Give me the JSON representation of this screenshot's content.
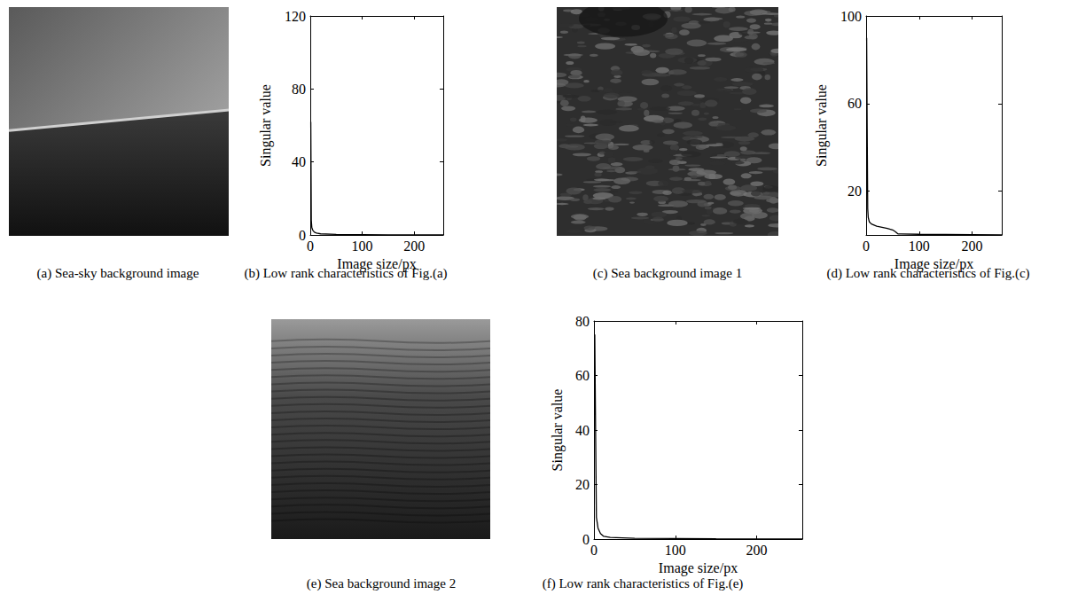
{
  "chart_data": [
    {
      "type": "image",
      "caption": "(a) Sea-sky background image"
    },
    {
      "type": "line",
      "caption": "(b) Low rank characteristics of Fig.(a)",
      "x_label": "Image size/px",
      "y_label": "Singular value",
      "xlim": [
        0,
        256
      ],
      "ylim": [
        0,
        120
      ],
      "xticks": [
        0,
        100,
        200
      ],
      "yticks": [
        0,
        40,
        80,
        120
      ],
      "x": [
        1,
        2,
        3,
        5,
        8,
        12,
        20,
        50,
        100,
        150,
        200,
        256
      ],
      "values": [
        62,
        8,
        4,
        2.5,
        1.5,
        1,
        0.6,
        0.3,
        0.2,
        0.1,
        0.05,
        0
      ],
      "color": "#000000"
    },
    {
      "type": "image",
      "caption": "(c) Sea background image 1"
    },
    {
      "type": "line",
      "caption": "(d) Low rank characteristics of Fig.(c)",
      "x_label": "Image size/px",
      "y_label": "Singular value",
      "xlim": [
        0,
        256
      ],
      "ylim": [
        0,
        100
      ],
      "xticks": [
        0,
        100,
        200
      ],
      "yticks": [
        20,
        60,
        100
      ],
      "x": [
        1,
        2,
        3,
        4,
        6,
        10,
        20,
        30,
        40,
        50,
        55,
        60,
        100,
        150,
        200,
        256
      ],
      "values": [
        90,
        48,
        12,
        8,
        6,
        5,
        4,
        3.5,
        3,
        2.3,
        1.5,
        0.5,
        0.3,
        0.2,
        0.1,
        0
      ],
      "color": "#000000"
    },
    {
      "type": "image",
      "caption": "(e) Sea background image 2"
    },
    {
      "type": "line",
      "caption": "(f) Low rank characteristics of Fig.(e)",
      "x_label": "Image size/px",
      "y_label": "Singular value",
      "xlim": [
        0,
        256
      ],
      "ylim": [
        0,
        80
      ],
      "xticks": [
        0,
        100,
        200
      ],
      "yticks": [
        0,
        20,
        40,
        60,
        80
      ],
      "x": [
        1,
        2,
        3,
        5,
        8,
        12,
        20,
        50,
        100,
        150,
        200,
        256
      ],
      "values": [
        75,
        40,
        8,
        4,
        2,
        1,
        0.6,
        0.3,
        0.2,
        0.1,
        0.05,
        0
      ],
      "color": "#000000"
    }
  ]
}
